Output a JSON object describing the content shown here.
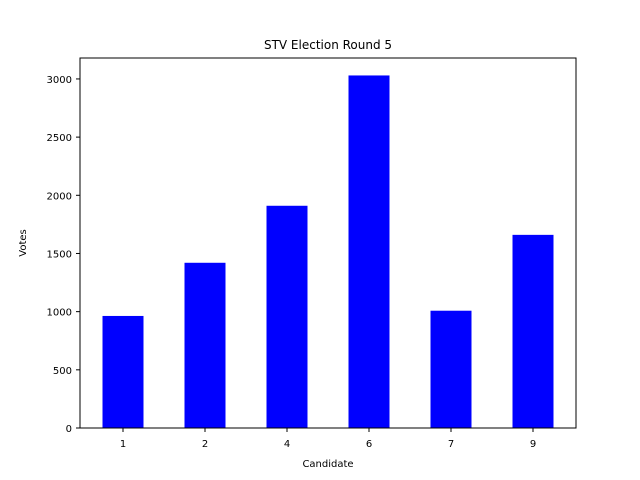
{
  "chart_data": {
    "type": "bar",
    "title": "STV Election Round 5",
    "xlabel": "Candidate",
    "ylabel": "Votes",
    "categories": [
      "1",
      "2",
      "4",
      "6",
      "7",
      "9"
    ],
    "values": [
      963,
      1420,
      1910,
      3030,
      1008,
      1660
    ],
    "ylim": [
      0,
      3180
    ],
    "yticks": [
      0,
      500,
      1000,
      1500,
      2000,
      2500,
      3000
    ],
    "bar_color": "#0000ff",
    "grid": false,
    "legend": "none"
  }
}
